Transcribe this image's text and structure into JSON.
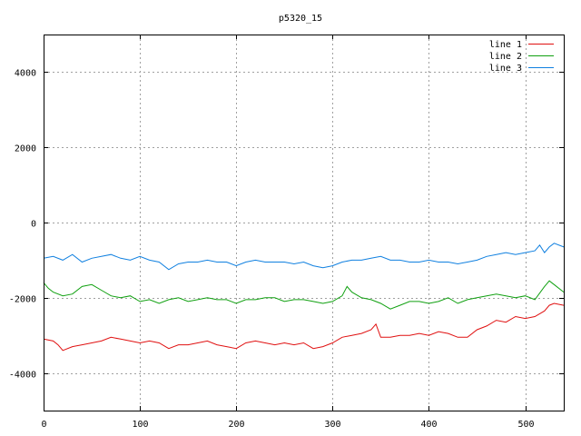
{
  "chart_data": {
    "type": "line",
    "title": "p5320_15",
    "xlabel": "",
    "ylabel": "",
    "xlim": [
      0,
      540
    ],
    "ylim": [
      -5000,
      5000
    ],
    "xticks": [
      0,
      100,
      200,
      300,
      400,
      500
    ],
    "yticks": [
      -4000,
      -2000,
      0,
      2000,
      4000
    ],
    "grid": true,
    "legend_position": "top-right",
    "series": [
      {
        "name": "line 1",
        "color": "#e01010",
        "x": [
          0,
          10,
          15,
          20,
          30,
          40,
          50,
          60,
          70,
          80,
          90,
          100,
          110,
          120,
          130,
          140,
          150,
          160,
          170,
          180,
          190,
          200,
          210,
          220,
          230,
          240,
          250,
          260,
          270,
          280,
          290,
          300,
          310,
          320,
          330,
          340,
          345,
          350,
          360,
          370,
          380,
          390,
          400,
          410,
          420,
          430,
          440,
          450,
          460,
          470,
          480,
          490,
          500,
          510,
          520,
          525,
          530,
          540
        ],
        "y": [
          -3100,
          -3150,
          -3250,
          -3400,
          -3300,
          -3250,
          -3200,
          -3150,
          -3050,
          -3100,
          -3150,
          -3200,
          -3150,
          -3200,
          -3350,
          -3250,
          -3250,
          -3200,
          -3150,
          -3250,
          -3300,
          -3350,
          -3200,
          -3150,
          -3200,
          -3250,
          -3200,
          -3250,
          -3200,
          -3350,
          -3300,
          -3200,
          -3050,
          -3000,
          -2950,
          -2850,
          -2700,
          -3050,
          -3050,
          -3000,
          -3000,
          -2950,
          -3000,
          -2900,
          -2950,
          -3050,
          -3050,
          -2850,
          -2750,
          -2600,
          -2650,
          -2500,
          -2550,
          -2500,
          -2350,
          -2200,
          -2150,
          -2200
        ]
      },
      {
        "name": "line 2",
        "color": "#10a010",
        "x": [
          0,
          5,
          10,
          20,
          30,
          40,
          50,
          60,
          70,
          80,
          90,
          100,
          110,
          120,
          130,
          140,
          150,
          160,
          170,
          180,
          190,
          200,
          210,
          220,
          230,
          240,
          250,
          260,
          270,
          280,
          290,
          300,
          310,
          315,
          320,
          330,
          340,
          350,
          360,
          370,
          380,
          390,
          400,
          410,
          420,
          430,
          440,
          450,
          460,
          470,
          480,
          490,
          500,
          510,
          520,
          525,
          530,
          540
        ],
        "y": [
          -1600,
          -1750,
          -1850,
          -1950,
          -1900,
          -1700,
          -1650,
          -1800,
          -1950,
          -2000,
          -1950,
          -2100,
          -2050,
          -2150,
          -2050,
          -2000,
          -2100,
          -2050,
          -2000,
          -2050,
          -2050,
          -2150,
          -2050,
          -2050,
          -2000,
          -2000,
          -2100,
          -2050,
          -2050,
          -2100,
          -2150,
          -2100,
          -1950,
          -1700,
          -1850,
          -2000,
          -2050,
          -2150,
          -2300,
          -2200,
          -2100,
          -2100,
          -2150,
          -2100,
          -2000,
          -2150,
          -2050,
          -2000,
          -1950,
          -1900,
          -1950,
          -2000,
          -1950,
          -2050,
          -1700,
          -1550,
          -1650,
          -1850
        ]
      },
      {
        "name": "line 3",
        "color": "#1080e0",
        "x": [
          0,
          10,
          20,
          30,
          40,
          50,
          60,
          70,
          80,
          90,
          100,
          110,
          120,
          130,
          140,
          150,
          160,
          170,
          180,
          190,
          200,
          210,
          220,
          230,
          240,
          250,
          260,
          270,
          280,
          290,
          300,
          310,
          320,
          330,
          340,
          350,
          360,
          370,
          380,
          390,
          400,
          410,
          420,
          430,
          440,
          450,
          460,
          470,
          480,
          490,
          500,
          510,
          515,
          520,
          525,
          530,
          540
        ],
        "y": [
          -950,
          -900,
          -1000,
          -850,
          -1050,
          -950,
          -900,
          -850,
          -950,
          -1000,
          -900,
          -1000,
          -1050,
          -1250,
          -1100,
          -1050,
          -1050,
          -1000,
          -1050,
          -1050,
          -1150,
          -1050,
          -1000,
          -1050,
          -1050,
          -1050,
          -1100,
          -1050,
          -1150,
          -1200,
          -1150,
          -1050,
          -1000,
          -1000,
          -950,
          -900,
          -1000,
          -1000,
          -1050,
          -1050,
          -1000,
          -1050,
          -1050,
          -1100,
          -1050,
          -1000,
          -900,
          -850,
          -800,
          -850,
          -800,
          -750,
          -600,
          -800,
          -650,
          -550,
          -650
        ]
      }
    ]
  }
}
